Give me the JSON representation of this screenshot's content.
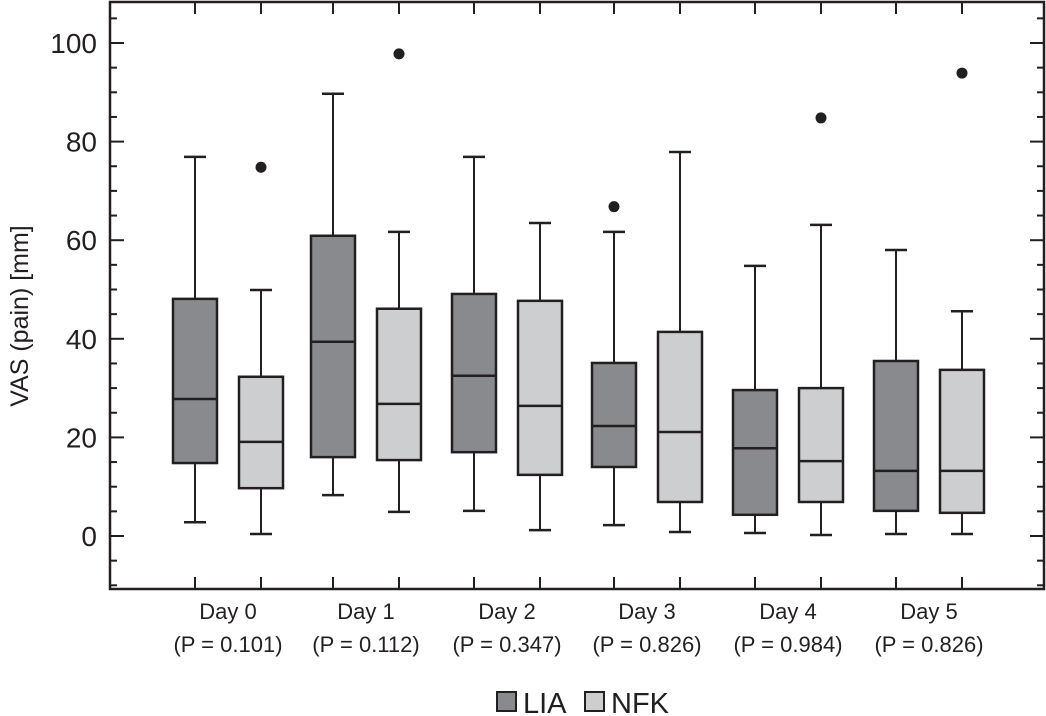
{
  "chart_data": {
    "type": "box",
    "title": "",
    "xlabel": "",
    "ylabel": "VAS (pain) [mm]",
    "ylim": [
      -11,
      109
    ],
    "yticks": [
      0,
      20,
      40,
      60,
      80,
      100
    ],
    "yticks_minor_step": 5,
    "grid": false,
    "legend_position": "bottom-center",
    "categories": [
      {
        "label": "Day 0",
        "p_label": "(P = 0.101)"
      },
      {
        "label": "Day 1",
        "p_label": "(P = 0.112)"
      },
      {
        "label": "Day 2",
        "p_label": "(P = 0.347)"
      },
      {
        "label": "Day 3",
        "p_label": "(P = 0.826)"
      },
      {
        "label": "Day 4",
        "p_label": "(P = 0.984)"
      },
      {
        "label": "Day 5",
        "p_label": "(P = 0.826)"
      }
    ],
    "series": [
      {
        "name": "LIA",
        "color": "#898a8d",
        "boxes": [
          {
            "whisker_low": 2.8,
            "q1": 14.8,
            "median": 27.8,
            "q3": 48.1,
            "whisker_high": 76.9,
            "outliers": []
          },
          {
            "whisker_low": 8.3,
            "q1": 16.0,
            "median": 39.4,
            "q3": 60.9,
            "whisker_high": 89.7,
            "outliers": []
          },
          {
            "whisker_low": 5.1,
            "q1": 17.0,
            "median": 32.5,
            "q3": 49.1,
            "whisker_high": 76.9,
            "outliers": []
          },
          {
            "whisker_low": 2.2,
            "q1": 14.0,
            "median": 22.3,
            "q3": 35.1,
            "whisker_high": 61.7,
            "outliers": [
              66.8
            ]
          },
          {
            "whisker_low": 0.6,
            "q1": 4.3,
            "median": 17.8,
            "q3": 29.6,
            "whisker_high": 54.8,
            "outliers": []
          },
          {
            "whisker_low": 0.4,
            "q1": 5.1,
            "median": 13.2,
            "q3": 35.5,
            "whisker_high": 58.0,
            "outliers": []
          }
        ]
      },
      {
        "name": "NFK",
        "color": "#cdcecf",
        "boxes": [
          {
            "whisker_low": 0.4,
            "q1": 9.7,
            "median": 19.1,
            "q3": 32.3,
            "whisker_high": 49.9,
            "outliers": [
              74.8
            ]
          },
          {
            "whisker_low": 4.9,
            "q1": 15.4,
            "median": 26.8,
            "q3": 46.1,
            "whisker_high": 61.7,
            "outliers": [
              97.8
            ]
          },
          {
            "whisker_low": 1.2,
            "q1": 12.4,
            "median": 26.4,
            "q3": 47.7,
            "whisker_high": 63.5,
            "outliers": []
          },
          {
            "whisker_low": 0.8,
            "q1": 6.9,
            "median": 21.1,
            "q3": 41.4,
            "whisker_high": 77.9,
            "outliers": []
          },
          {
            "whisker_low": 0.2,
            "q1": 6.9,
            "median": 15.2,
            "q3": 30.0,
            "whisker_high": 63.1,
            "outliers": [
              84.8
            ]
          },
          {
            "whisker_low": 0.4,
            "q1": 4.7,
            "median": 13.2,
            "q3": 33.7,
            "whisker_high": 45.6,
            "outliers": [
              93.9
            ]
          }
        ]
      }
    ]
  },
  "legend": {
    "items": [
      {
        "label": "LIA",
        "color": "#898a8d"
      },
      {
        "label": "NFK",
        "color": "#cdcecf"
      }
    ]
  }
}
